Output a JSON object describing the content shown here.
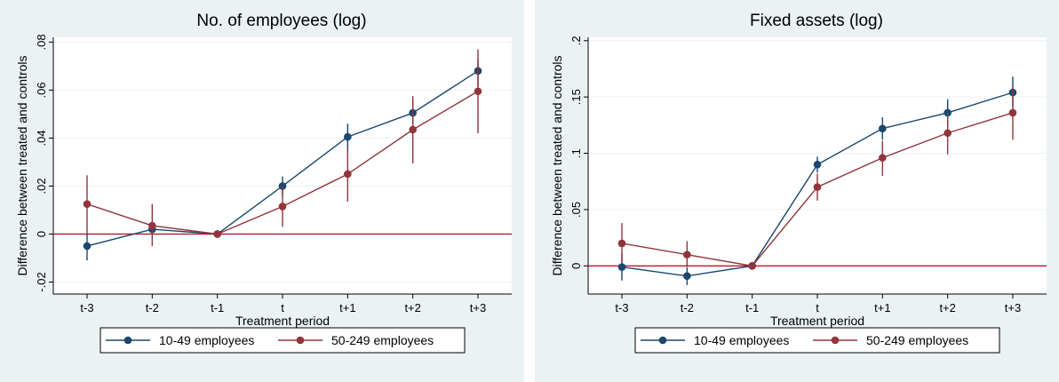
{
  "colors": {
    "panel_bg": "#eaf2f3",
    "plot_bg": "#ffffff",
    "grid": "#eaf2f3",
    "series_small": "#1a476f",
    "series_medium": "#90353b",
    "zero_line": "#c8102e"
  },
  "chart_data": [
    {
      "type": "line",
      "title": "No. of employees (log)",
      "xlabel": "Treatment period",
      "ylabel": "Difference between treated and controls",
      "categories": [
        "t-3",
        "t-2",
        "t-1",
        "t",
        "t+1",
        "t+2",
        "t+3"
      ],
      "ylim": [
        -0.025,
        0.082
      ],
      "yticks": [
        -0.02,
        0,
        0.02,
        0.04,
        0.06,
        0.08
      ],
      "ytick_labels": [
        "-.02",
        "0",
        ".02",
        ".04",
        ".06",
        ".08"
      ],
      "reference_line_y": 0,
      "grid": true,
      "legend": "bottom",
      "series": [
        {
          "name": "10-49 employees",
          "color": "#1a476f",
          "values": [
            -0.005,
            0.002,
            0,
            0.02,
            0.0405,
            0.0505,
            0.068
          ],
          "ci_low": [
            -0.011,
            0.0,
            0,
            0.016,
            0.035,
            0.045,
            0.0615
          ],
          "ci_high": [
            0.0,
            0.004,
            0,
            0.024,
            0.046,
            0.056,
            0.073
          ]
        },
        {
          "name": "50-249 employees",
          "color": "#90353b",
          "values": [
            0.0125,
            0.0035,
            0,
            0.0115,
            0.025,
            0.0435,
            0.0595
          ],
          "ci_low": [
            0.0,
            -0.005,
            0,
            0.003,
            0.0135,
            0.0295,
            0.042
          ],
          "ci_high": [
            0.0245,
            0.0125,
            0,
            0.02,
            0.036,
            0.0575,
            0.077
          ]
        }
      ]
    },
    {
      "type": "line",
      "title": "Fixed assets (log)",
      "xlabel": "Treatment period",
      "ylabel": "Difference between treated and controls",
      "categories": [
        "t-3",
        "t-2",
        "t-1",
        "t",
        "t+1",
        "t+2",
        "t+3"
      ],
      "ylim": [
        -0.025,
        0.203
      ],
      "yticks": [
        0,
        0.05,
        0.1,
        0.15,
        0.2
      ],
      "ytick_labels": [
        "0",
        ".05",
        ".1",
        ".15",
        ".2"
      ],
      "reference_line_y": 0,
      "grid": true,
      "legend": "bottom",
      "series": [
        {
          "name": "10-49 employees",
          "color": "#1a476f",
          "values": [
            -0.001,
            -0.009,
            0,
            0.09,
            0.122,
            0.136,
            0.154
          ],
          "ci_low": [
            -0.013,
            -0.017,
            0,
            0.083,
            0.112,
            0.124,
            0.141
          ],
          "ci_high": [
            0.011,
            -0.001,
            0,
            0.097,
            0.132,
            0.148,
            0.168
          ]
        },
        {
          "name": "50-249 employees",
          "color": "#90353b",
          "values": [
            0.02,
            0.01,
            0,
            0.07,
            0.096,
            0.118,
            0.136
          ],
          "ci_low": [
            0.002,
            0.0,
            0,
            0.058,
            0.08,
            0.099,
            0.112
          ],
          "ci_high": [
            0.038,
            0.022,
            0,
            0.082,
            0.111,
            0.136,
            0.16
          ]
        }
      ]
    }
  ]
}
